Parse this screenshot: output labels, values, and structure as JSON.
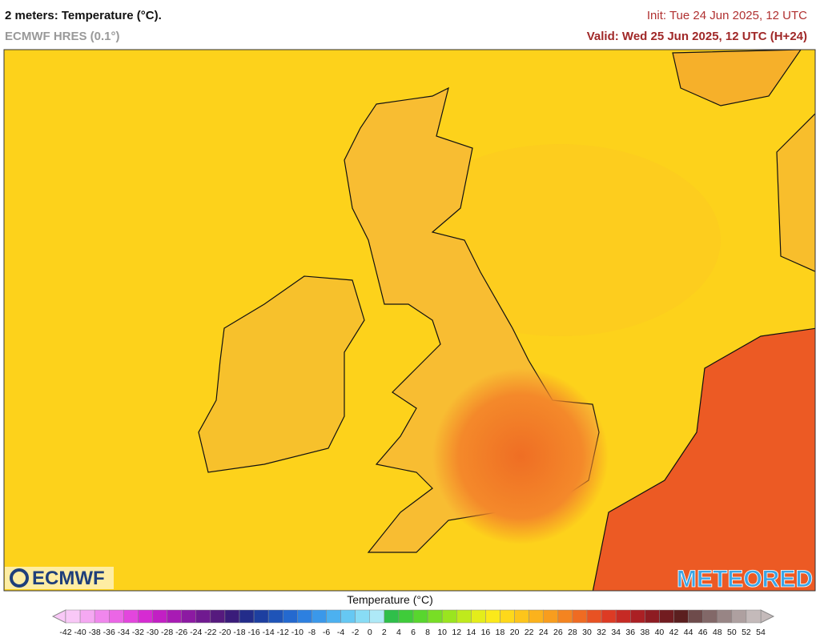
{
  "header": {
    "title": "2 meters: Temperature (°C).",
    "model": "ECMWF HRES (0.1°)",
    "init": "Init: Tue 24 Jun 2025, 12 UTC",
    "valid": "Valid: Wed 25 Jun 2025, 12 UTC (H+24)"
  },
  "logos": {
    "left": "ECMWF",
    "right": "METEORED"
  },
  "colorbar": {
    "title": "Temperature (°C)",
    "ticks": [
      -42,
      -40,
      -38,
      -36,
      -34,
      -32,
      -30,
      -28,
      -26,
      -24,
      -22,
      -20,
      -18,
      -16,
      -14,
      -12,
      -10,
      -8,
      -6,
      -4,
      -2,
      0,
      2,
      4,
      6,
      8,
      10,
      12,
      14,
      16,
      18,
      20,
      22,
      24,
      26,
      28,
      30,
      32,
      34,
      36,
      38,
      40,
      42,
      44,
      46,
      48,
      50,
      52,
      54
    ],
    "colors": [
      "#f9c8f7",
      "#f5a8f2",
      "#f087ed",
      "#eb66e6",
      "#e346dd",
      "#d62bd2",
      "#c21fc4",
      "#a81bb4",
      "#8c1aa2",
      "#701a90",
      "#561a7e",
      "#3a1c7a",
      "#232c8a",
      "#1d3fa0",
      "#1f54b8",
      "#2469cf",
      "#2d80e0",
      "#3a98ea",
      "#4cb1f0",
      "#66c8f3",
      "#88dcf5",
      "#aee9f7",
      "#2fbf4a",
      "#3fcc3a",
      "#58d62e",
      "#78de25",
      "#9ae51f",
      "#bfea1c",
      "#e4ed1a",
      "#fbe91a",
      "#fed81a",
      "#fdc51b",
      "#fbb21c",
      "#f89d1e",
      "#f48420",
      "#ef6b22",
      "#e85223",
      "#dd3b24",
      "#c62a24",
      "#ab2024",
      "#8e1c22",
      "#721c20",
      "#5b1f1f",
      "#6e4b4b",
      "#826868",
      "#988585",
      "#aea0a0",
      "#c4baba"
    ]
  }
}
